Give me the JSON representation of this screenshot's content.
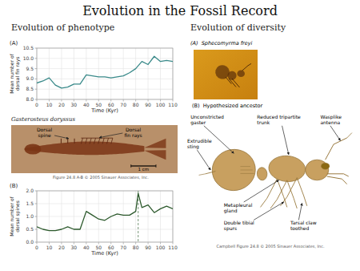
{
  "title": "Evolution in the Fossil Record",
  "subtitles": [
    "Evolution of phenotype",
    "Evolution of diversity"
  ],
  "annotations": [
    "Gasterosteus doryssus",
    "Dorsal\nspine",
    "Dorsal\nfin rays",
    "1 cm",
    "Figure 24.8 A-B © 2005 Sinauer Associates, Inc.",
    "(A)  Sphecomyrma freyi",
    "(B)  Hypothesized ancestor",
    "Unconstricted\ngaster",
    "Extrudible\nsting",
    "Metapleural\ngland",
    "Double tibial\nspurs",
    "Reduced tripartite\ntrunk",
    "Wasplike\nantenna",
    "Tarsal claw\ntoothed",
    "Campbell Figure 24.8 © 2005 Sinauer Associates, Inc."
  ],
  "chart_data": [
    {
      "type": "line",
      "annotations": [
        "(A)"
      ],
      "xlabel": "Time (Kyr)",
      "ylabel": "Mean number of dorsal fin rays",
      "x": [
        0,
        5,
        10,
        15,
        20,
        25,
        30,
        35,
        40,
        45,
        50,
        55,
        60,
        65,
        70,
        75,
        80,
        85,
        90,
        95,
        100,
        105,
        110
      ],
      "series": [
        {
          "color": "#3A8A8A",
          "values": [
            8.8,
            8.9,
            9.05,
            8.7,
            8.55,
            8.6,
            8.75,
            8.75,
            9.2,
            9.15,
            9.1,
            9.1,
            9.05,
            9.1,
            9.15,
            9.3,
            9.5,
            9.85,
            9.7,
            10.1,
            9.85,
            9.9,
            9.85
          ]
        }
      ],
      "xlim": [
        0,
        110
      ],
      "xticks": [
        0,
        10,
        20,
        30,
        40,
        50,
        60,
        70,
        80,
        90,
        100,
        110
      ],
      "ylim": [
        8.0,
        10.5
      ],
      "yticks": [
        {
          "value": 8.0,
          "label": "8.0"
        },
        8.5,
        {
          "value": 9.0,
          "label": "9.0"
        },
        9.5,
        {
          "value": 10.0,
          "label": "10.0"
        },
        10.5
      ],
      "grid": true
    },
    {
      "type": "line",
      "annotations": [
        "(B)"
      ],
      "xlabel": "Time (Kyr)",
      "ylabel": "Mean number of dorsal spines",
      "x": [
        0,
        5,
        10,
        15,
        20,
        25,
        30,
        35,
        40,
        45,
        50,
        55,
        60,
        65,
        70,
        75,
        80,
        82,
        85,
        90,
        95,
        100,
        105,
        110
      ],
      "series": [
        {
          "color": "#2D5A2D",
          "values": [
            0.6,
            0.5,
            0.45,
            0.45,
            0.5,
            0.6,
            0.5,
            0.5,
            1.2,
            1.05,
            0.9,
            0.85,
            1.0,
            1.1,
            1.05,
            1.05,
            1.2,
            1.9,
            1.35,
            1.45,
            1.15,
            1.3,
            1.4,
            1.3
          ]
        }
      ],
      "vlines": [
        82
      ],
      "xlim": [
        0,
        110
      ],
      "xticks": [
        0,
        10,
        20,
        30,
        40,
        50,
        60,
        70,
        80,
        90,
        100,
        110
      ],
      "ylim": [
        0,
        2.0
      ],
      "yticks": [
        {
          "value": 0,
          "label": "0.0"
        },
        0.5,
        {
          "value": 1.0,
          "label": "1.0"
        },
        1.5,
        {
          "value": 2.0,
          "label": "2.0"
        }
      ],
      "grid": true
    }
  ]
}
